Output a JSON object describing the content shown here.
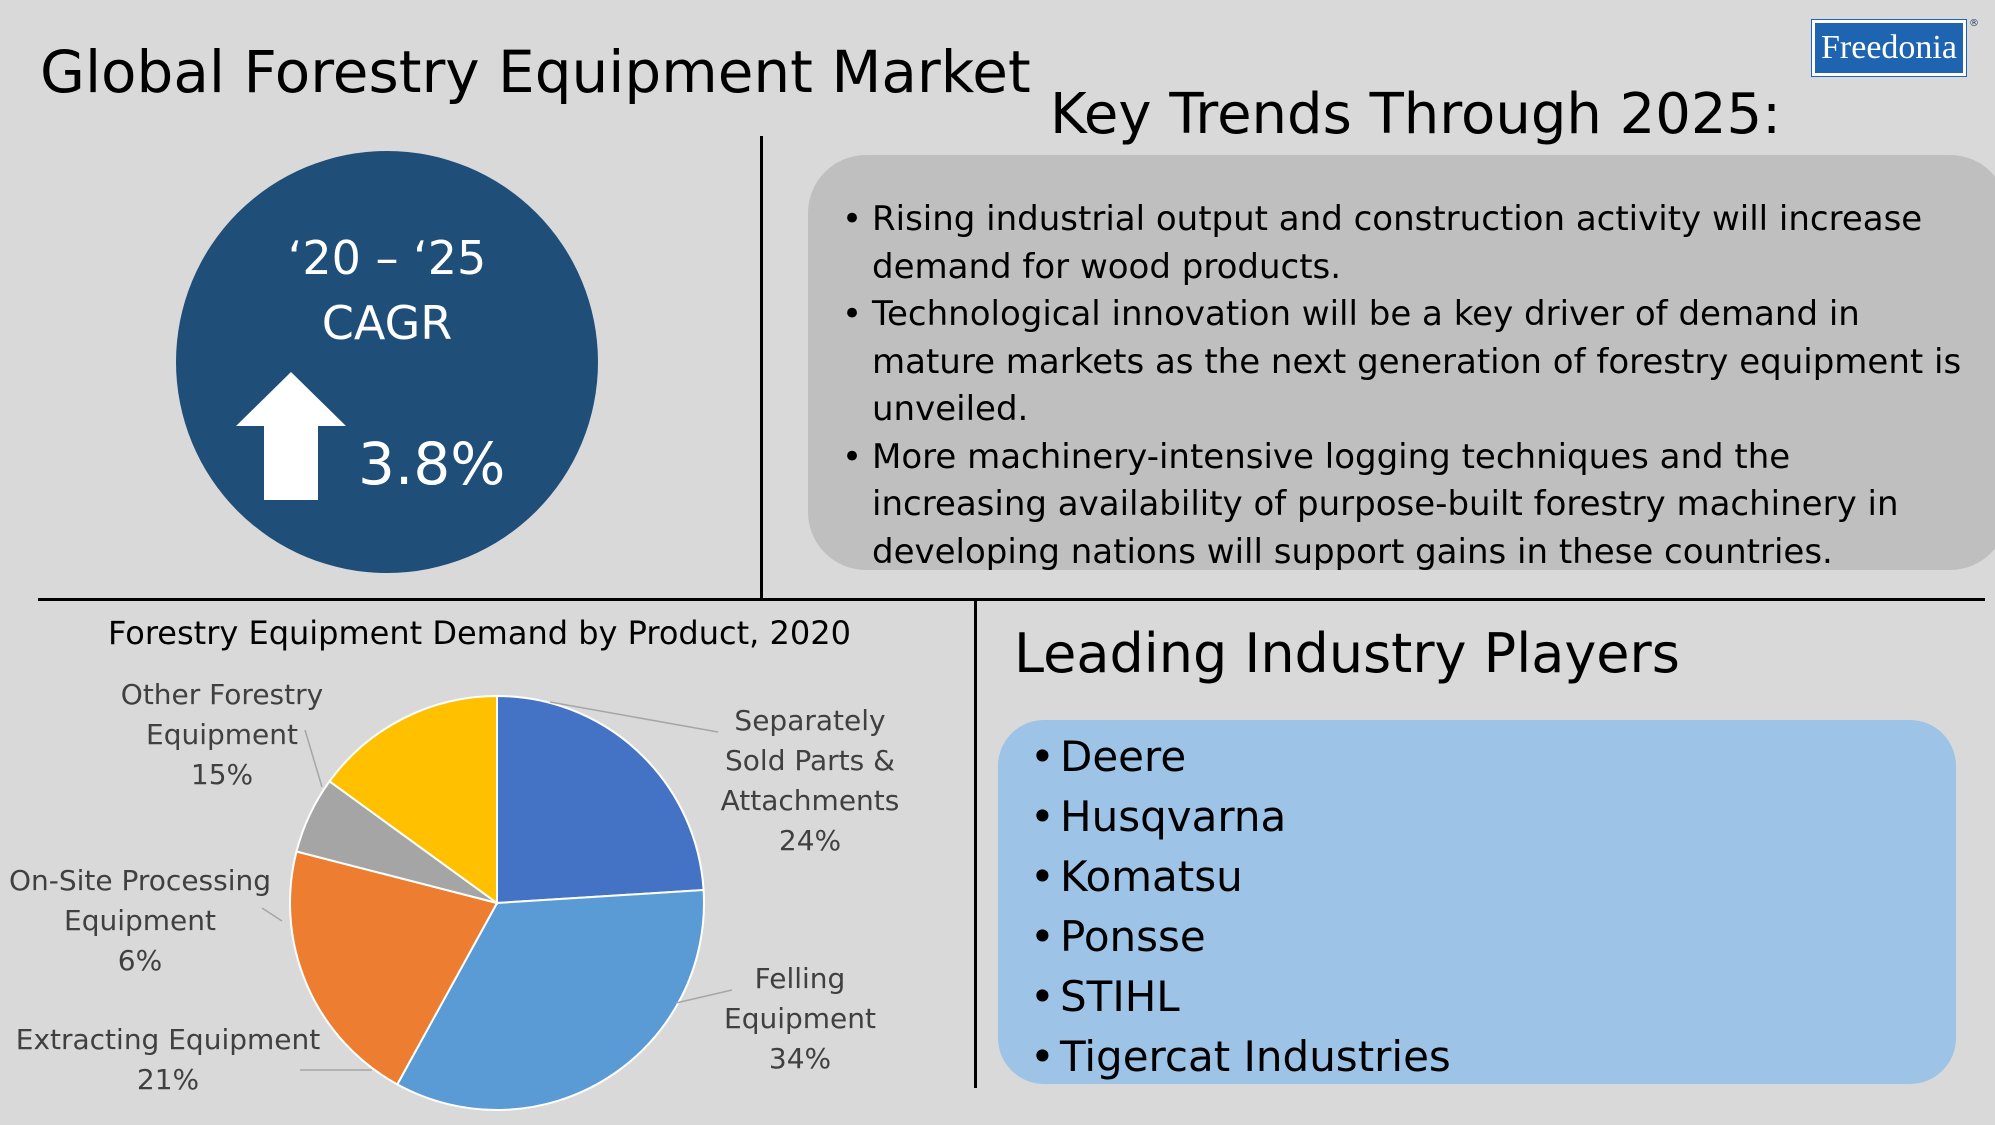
{
  "title": "Global Forestry Equipment Market",
  "logo": {
    "text": "Freedonia",
    "registered": "®"
  },
  "cagr": {
    "period": "‘20 – ‘25",
    "label": "CAGR",
    "value": "3.8%",
    "direction": "up",
    "circle_color": "#1f4e79"
  },
  "trends": {
    "heading": "Key Trends Through 2025:",
    "items": [
      "Rising industrial output and construction activity will increase demand for wood products.",
      "Technological innovation will be a key driver of demand in mature markets as the next generation of forestry equipment is unveiled.",
      "More machinery-intensive logging techniques and the increasing availability of purpose-built forestry machinery in developing nations will support gains in these countries."
    ]
  },
  "players": {
    "heading": "Leading Industry Players",
    "items": [
      "Deere",
      "Husqvarna",
      "Komatsu",
      "Ponsse",
      "STIHL",
      "Tigercat Industries"
    ]
  },
  "chart_data": {
    "type": "pie",
    "title": "Forestry Equipment Demand by Product, 2020",
    "unit": "%",
    "slices": [
      {
        "label": "Separately Sold Parts & Attachments",
        "value": 24,
        "color": "#4472c4",
        "display_lines": [
          "Separately",
          "Sold Parts &",
          "Attachments",
          "24%"
        ]
      },
      {
        "label": "Felling Equipment",
        "value": 34,
        "color": "#5b9bd5",
        "display_lines": [
          "Felling",
          "Equipment",
          "34%"
        ]
      },
      {
        "label": "Extracting Equipment",
        "value": 21,
        "color": "#ed7d31",
        "display_lines": [
          "Extracting Equipment",
          "21%"
        ]
      },
      {
        "label": "On-Site Processing Equipment",
        "value": 6,
        "color": "#a5a5a5",
        "display_lines": [
          "On-Site Processing",
          "Equipment",
          "6%"
        ]
      },
      {
        "label": "Other Forestry Equipment",
        "value": 15,
        "color": "#ffc000",
        "display_lines": [
          "Other Forestry",
          "Equipment",
          "15%"
        ]
      }
    ]
  }
}
